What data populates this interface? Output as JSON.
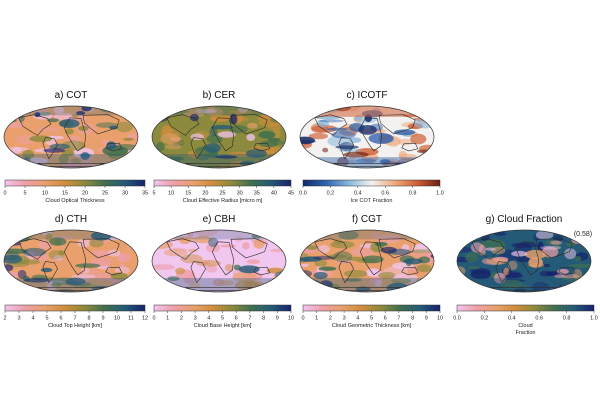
{
  "chart_data": [
    {
      "type": "heatmap",
      "title": "a) COT",
      "colorbar_label": "Cloud Optical Thickness",
      "ticks": [
        "0",
        "5",
        "10",
        "15",
        "20",
        "25",
        "30",
        "35"
      ],
      "range": [
        0,
        35
      ],
      "colormap": [
        "#f1c6ef",
        "#ee9fa8",
        "#e9a06c",
        "#cf8d3c",
        "#8c8a3c",
        "#3f6f4f",
        "#245a78",
        "#16226b"
      ],
      "map_style": "cloud"
    },
    {
      "type": "heatmap",
      "title": "b) CER",
      "colorbar_label": "Cloud Effective Radius [micro m]",
      "ticks": [
        "5",
        "10",
        "15",
        "20",
        "25",
        "30",
        "35",
        "40",
        "45"
      ],
      "range": [
        5,
        45
      ],
      "colormap": [
        "#f1c6ef",
        "#ee9fa8",
        "#e9a06c",
        "#cf8d3c",
        "#8c8a3c",
        "#3f6f4f",
        "#245a78",
        "#16226b"
      ],
      "map_style": "green"
    },
    {
      "type": "heatmap",
      "title": "c)  ICOTF",
      "colorbar_label": "Ice COT Fraction",
      "ticks": [
        "0.0",
        "0.2",
        "0.4",
        "0.6",
        "0.8",
        "1.0"
      ],
      "range": [
        0,
        1
      ],
      "colormap": [
        "#0d2b6b",
        "#2f63ad",
        "#86b6dc",
        "#f3f2f0",
        "#efaa7f",
        "#cf5f36",
        "#6b1d10"
      ],
      "map_style": "ice"
    },
    {
      "type": "heatmap",
      "title": "d) CTH",
      "colorbar_label": "Cloud Top Height [km]",
      "ticks": [
        "2",
        "3",
        "4",
        "5",
        "6",
        "7",
        "8",
        "9",
        "10",
        "11",
        "12"
      ],
      "range": [
        2,
        12
      ],
      "colormap": [
        "#f1c6ef",
        "#ee9fa8",
        "#e9a06c",
        "#cf8d3c",
        "#8c8a3c",
        "#3f6f4f",
        "#245a78",
        "#16226b"
      ],
      "map_style": "cloud"
    },
    {
      "type": "heatmap",
      "title": "e) CBH",
      "colorbar_label": "Cloud Base Height [km]",
      "ticks": [
        "0",
        "1",
        "2",
        "3",
        "4",
        "5",
        "6",
        "7",
        "8",
        "9",
        "10"
      ],
      "range": [
        0,
        10
      ],
      "colormap": [
        "#f1c6ef",
        "#ee9fa8",
        "#e9a06c",
        "#cf8d3c",
        "#8c8a3c",
        "#3f6f4f",
        "#245a78",
        "#16226b"
      ],
      "map_style": "pink"
    },
    {
      "type": "heatmap",
      "title": "f) CGT",
      "colorbar_label": "Cloud Geometric Thickness [km]",
      "ticks": [
        "0",
        "1",
        "2",
        "3",
        "4",
        "5",
        "6",
        "7",
        "8",
        "9",
        "10"
      ],
      "range": [
        0,
        10
      ],
      "colormap": [
        "#f1c6ef",
        "#ee9fa8",
        "#e9a06c",
        "#cf8d3c",
        "#8c8a3c",
        "#3f6f4f",
        "#245a78",
        "#16226b"
      ],
      "map_style": "cloud"
    },
    {
      "type": "heatmap",
      "title": "g) Cloud Fraction",
      "colorbar_label": "Cloud\nFraction",
      "ticks": [
        "0.0",
        "0.2",
        "0.4",
        "0.6",
        "0.8",
        "1.0"
      ],
      "range": [
        0,
        1
      ],
      "colormap": [
        "#f1c6ef",
        "#ee9fa8",
        "#e9a06c",
        "#cf8d3c",
        "#8c8a3c",
        "#3f6f4f",
        "#245a78",
        "#16226b"
      ],
      "map_style": "dark",
      "annotation": "(0.58)"
    }
  ]
}
